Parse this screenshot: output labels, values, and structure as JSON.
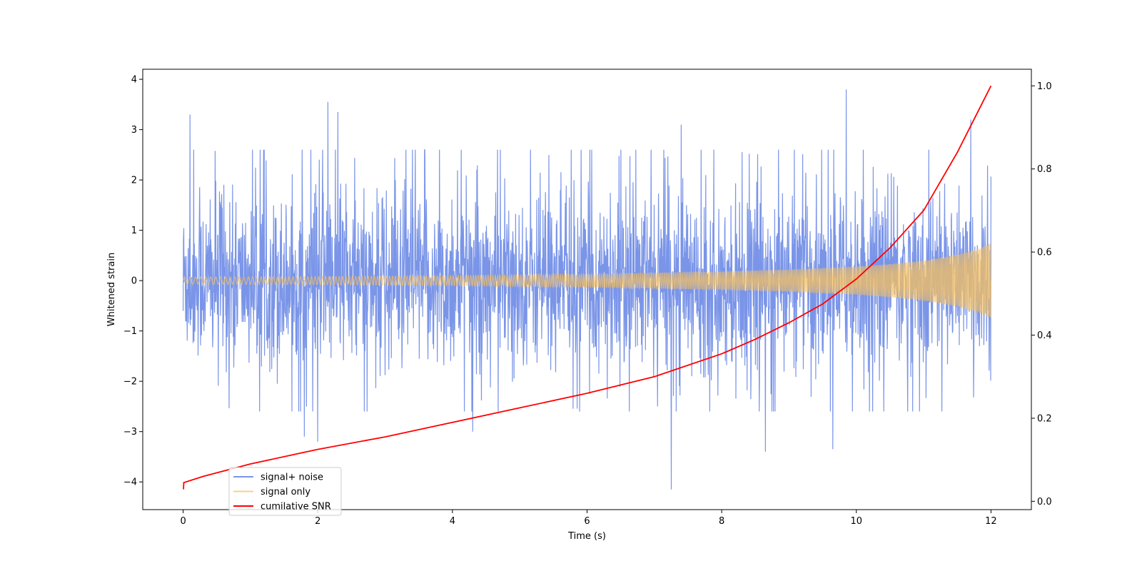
{
  "chart_data": {
    "type": "line",
    "title": "",
    "xlabel": "Time (s)",
    "ylabel": "Whitened strain",
    "y2label": "",
    "xlim": [
      -0.6,
      12.6
    ],
    "ylim": [
      -4.55,
      4.2
    ],
    "y2lim": [
      -0.02,
      1.04
    ],
    "xticks": [
      0,
      2,
      4,
      6,
      8,
      10,
      12
    ],
    "yticks": [
      -4,
      -3,
      -2,
      -1,
      0,
      1,
      2,
      3,
      4
    ],
    "y2ticks": [
      0.0,
      0.2,
      0.4,
      0.6,
      0.8,
      1.0
    ],
    "xtick_labels": [
      "0",
      "2",
      "4",
      "6",
      "8",
      "10",
      "12"
    ],
    "ytick_labels": [
      "−4",
      "−3",
      "−2",
      "−1",
      "0",
      "1",
      "2",
      "3",
      "4"
    ],
    "y2tick_labels": [
      "0.0",
      "0.2",
      "0.4",
      "0.6",
      "0.8",
      "1.0"
    ],
    "grid": false,
    "legend": {
      "placement": "lower-left"
    },
    "series": [
      {
        "name": "signal+ noise",
        "axis": "left",
        "color": "#6b8ae6",
        "description": "noise-dominated trace, amplitude roughly ±2.5 with spikes to about ±3.8",
        "x_range": [
          0,
          12
        ],
        "typical_amplitude": 1.3,
        "spikes": [
          {
            "x": 0.1,
            "y": 3.3
          },
          {
            "x": 2.15,
            "y": 3.55
          },
          {
            "x": 2.3,
            "y": 3.35
          },
          {
            "x": 9.85,
            "y": 3.8
          },
          {
            "x": 7.25,
            "y": -4.15
          },
          {
            "x": 2.0,
            "y": -3.2
          },
          {
            "x": 8.65,
            "y": -3.4
          },
          {
            "x": 9.65,
            "y": -3.35
          },
          {
            "x": 1.8,
            "y": -3.1
          },
          {
            "x": 4.3,
            "y": -3.0
          },
          {
            "x": 11.7,
            "y": 3.2
          },
          {
            "x": 7.4,
            "y": 3.1
          }
        ]
      },
      {
        "name": "signal only",
        "axis": "left",
        "color": "#f5c060",
        "description": "chirp with envelope growing from about 0.07 at t=0 to about 0.75 at t=12",
        "x_range": [
          0,
          12
        ],
        "envelope": [
          [
            0,
            0.07
          ],
          [
            2,
            0.08
          ],
          [
            4,
            0.1
          ],
          [
            6,
            0.13
          ],
          [
            8,
            0.18
          ],
          [
            9,
            0.22
          ],
          [
            10,
            0.28
          ],
          [
            10.5,
            0.33
          ],
          [
            11,
            0.4
          ],
          [
            11.5,
            0.52
          ],
          [
            11.8,
            0.63
          ],
          [
            12,
            0.75
          ]
        ]
      },
      {
        "name": "cumilative SNR",
        "axis": "right",
        "color": "#ff0000",
        "x": [
          0.0,
          0.005,
          0.01,
          0.3,
          1.0,
          2.0,
          3.0,
          4.0,
          5.0,
          6.0,
          7.0,
          8.0,
          8.5,
          9.0,
          9.5,
          10.0,
          10.5,
          11.0,
          11.5,
          12.0
        ],
        "values": [
          0.03,
          0.03,
          0.045,
          0.06,
          0.09,
          0.125,
          0.155,
          0.19,
          0.225,
          0.26,
          0.3,
          0.355,
          0.39,
          0.43,
          0.475,
          0.535,
          0.61,
          0.7,
          0.84,
          1.0
        ]
      }
    ]
  }
}
